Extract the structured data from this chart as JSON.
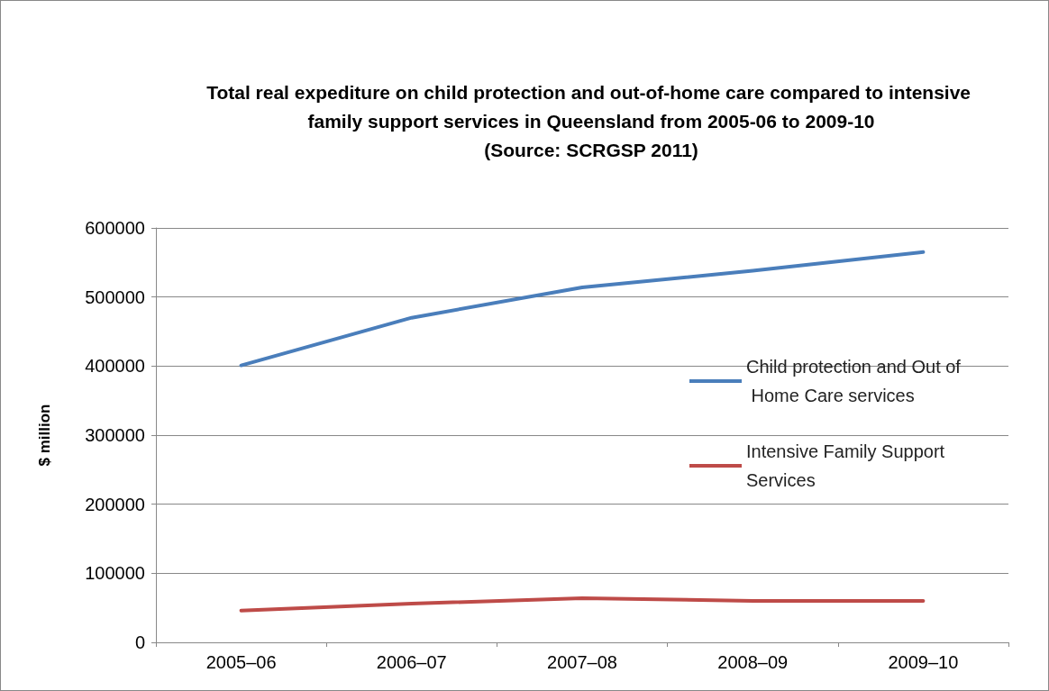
{
  "chart_data": {
    "type": "line",
    "title": "Total real expediture on child protection and out-of-home care compared to intensive family support services in Queensland from 2005-06 to 2009-10\n(Source: SCRGSP 2011)",
    "ylabel": "$ million",
    "categories": [
      "2005–06",
      "2006–07",
      "2007–08",
      "2008–09",
      "2009–10"
    ],
    "series": [
      {
        "name": "Child protection and Out of Home Care services",
        "color": "#4a7ebb",
        "values": [
          401000,
          470000,
          514000,
          538000,
          565000
        ]
      },
      {
        "name": "Intensive Family Support Services",
        "color": "#be4b48",
        "values": [
          46000,
          56000,
          64000,
          60000,
          60000
        ]
      }
    ],
    "ylim": [
      0,
      600000
    ],
    "yticks": [
      0,
      100000,
      200000,
      300000,
      400000,
      500000,
      600000
    ],
    "grid": "y",
    "legend": "right",
    "marker": "none",
    "line_style": "solid"
  }
}
